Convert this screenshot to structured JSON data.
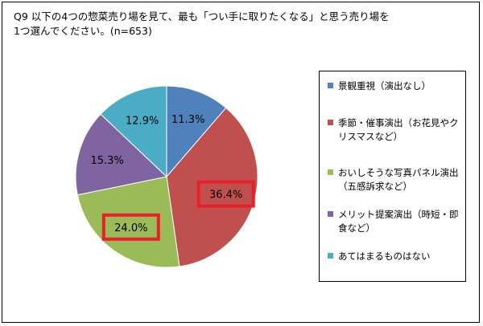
{
  "title": "Q9 以下の4つの惣菜売り場を見て、最も「つい手に取りたくなる」と思う売り場を\n1つ選んでください。(n=653)",
  "chart_data": {
    "type": "pie",
    "start_angle": "12 o'clock",
    "direction": "clockwise",
    "slices": [
      {
        "label": "景観重視（演出なし）",
        "value": 11.3,
        "value_label": "11.3%",
        "color": "#4F81BD",
        "highlighted": false
      },
      {
        "label": "季節・催事演出（お花見やクリスマスなど）",
        "value": 36.4,
        "value_label": "36.4%",
        "color": "#C0504D",
        "highlighted": true
      },
      {
        "label": "おいしそうな写真パネル演出（五感訴求など）",
        "value": 24.0,
        "value_label": "24.0%",
        "color": "#9BBB59",
        "highlighted": true
      },
      {
        "label": "メリット提案演出（時短・即食など）",
        "value": 15.3,
        "value_label": "15.3%",
        "color": "#8064A2",
        "highlighted": false
      },
      {
        "label": "あてはまるものはない",
        "value": 12.9,
        "value_label": "12.9%",
        "color": "#4BACC6",
        "highlighted": false
      }
    ],
    "highlight_color": "#E8202A",
    "legend_position": "right"
  }
}
